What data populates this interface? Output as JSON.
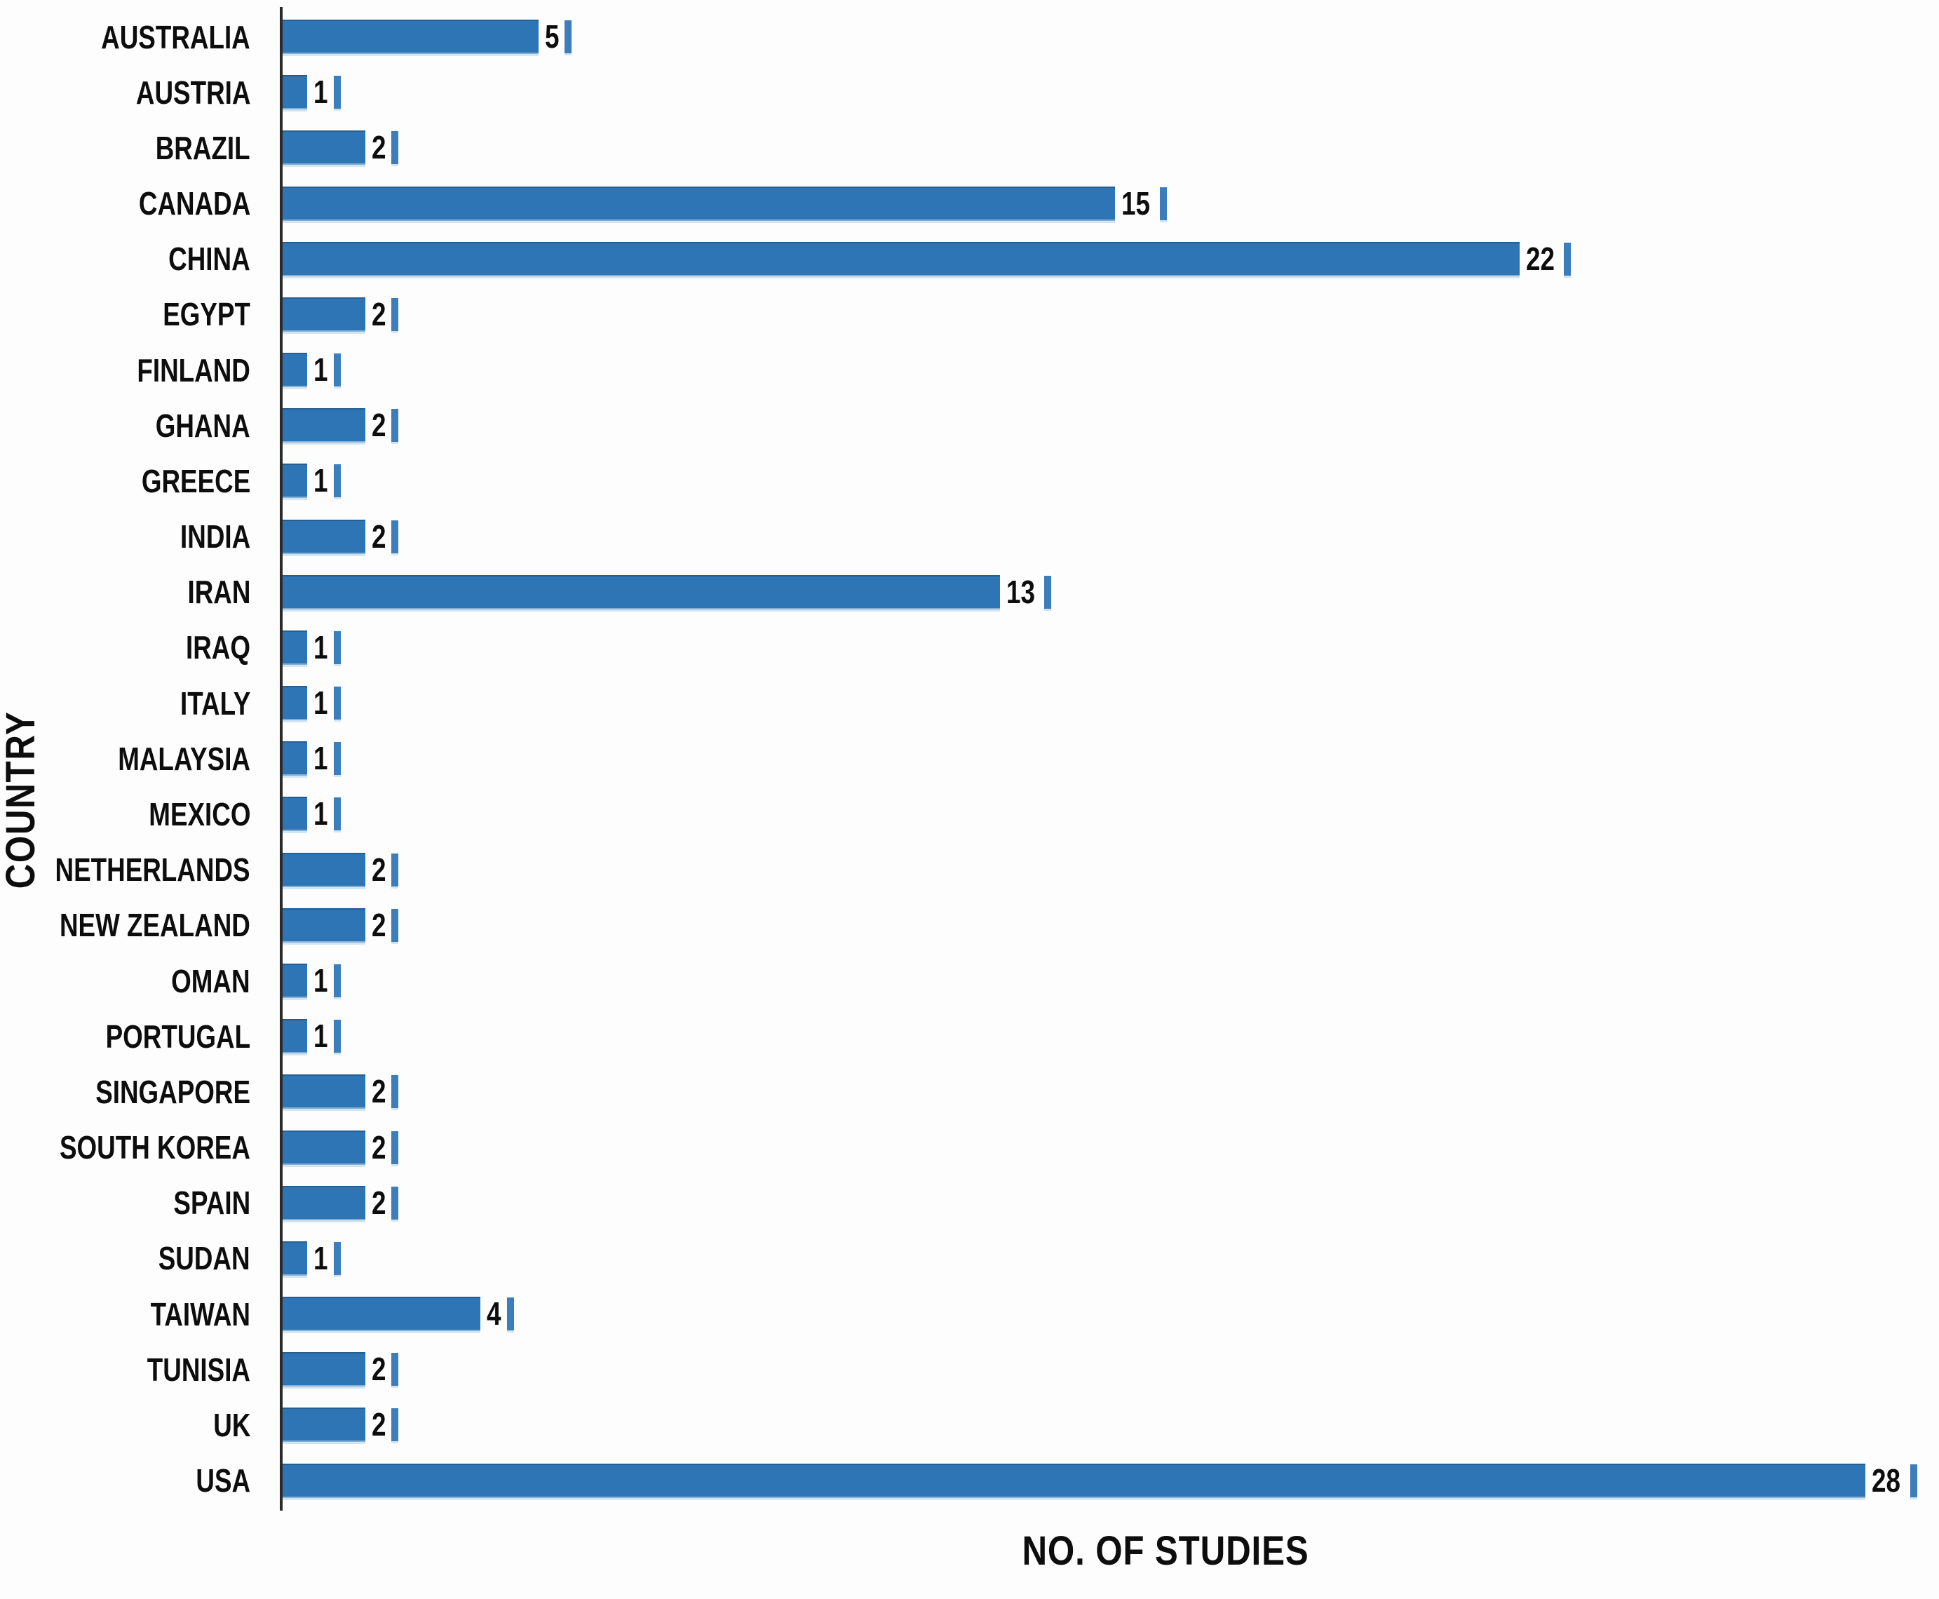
{
  "chart_data": {
    "type": "bar",
    "orientation": "horizontal",
    "title": "",
    "xlabel": "NO. OF STUDIES",
    "ylabel": "COUNTRY",
    "xlim": [
      0,
      29
    ],
    "grid": false,
    "legend": null,
    "value_labels": "end-of-bar",
    "bar_color": "#2E75B6",
    "tick_marker_color": "#3C7DBC",
    "axis_line_color": "#2A2A2A",
    "text_color": "#0D0D0D",
    "background_color": "#FDFDFD",
    "categories": [
      "AUSTRALIA",
      "AUSTRIA",
      "BRAZIL",
      "CANADA",
      "CHINA",
      "EGYPT",
      "FINLAND",
      "GHANA",
      "GREECE",
      "INDIA",
      "IRAN",
      "IRAQ",
      "ITALY",
      "MALAYSIA",
      "MEXICO",
      "NETHERLANDS",
      "NEW ZEALAND",
      "OMAN",
      "PORTUGAL",
      "SINGAPORE",
      "SOUTH KOREA",
      "SPAIN",
      "SUDAN",
      "TAIWAN",
      "TUNISIA",
      "UK",
      "USA"
    ],
    "values": [
      5,
      1,
      2,
      15,
      22,
      2,
      1,
      2,
      1,
      2,
      13,
      1,
      1,
      1,
      1,
      2,
      2,
      1,
      1,
      2,
      2,
      2,
      1,
      4,
      2,
      2,
      28
    ]
  }
}
